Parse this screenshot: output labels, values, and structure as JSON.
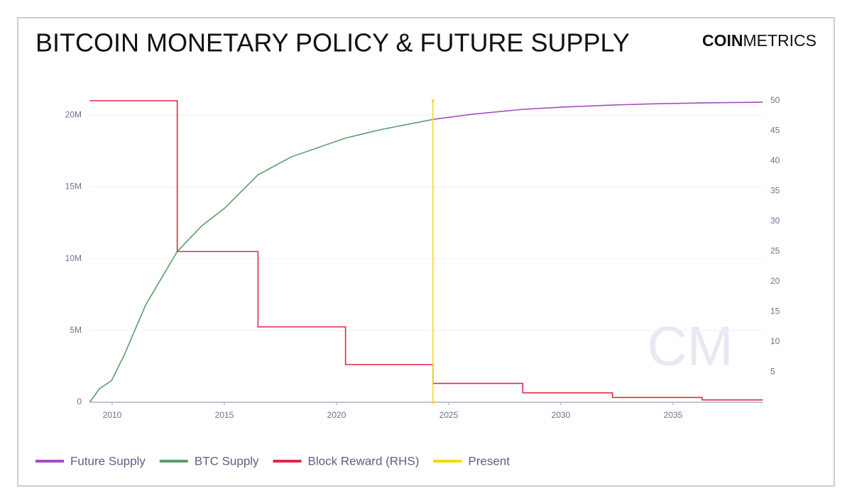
{
  "chart_data": {
    "type": "line",
    "title": "BITCOIN MONETARY POLICY & FUTURE SUPPLY",
    "brand": {
      "bold": "COIN",
      "light": "METRICS"
    },
    "watermark": "CM",
    "xlim": [
      2009,
      2039
    ],
    "xticks": [
      2010,
      2015,
      2020,
      2025,
      2030,
      2035
    ],
    "ylim": [
      0,
      21000000
    ],
    "yticks": [
      0,
      {
        "value": 5000000,
        "label": "5M"
      },
      {
        "value": 10000000,
        "label": "10M"
      },
      {
        "value": 15000000,
        "label": "15M"
      },
      {
        "value": 20000000,
        "label": "20M"
      }
    ],
    "y2lim": [
      0,
      50
    ],
    "y2ticks": [
      5,
      10,
      15,
      20,
      25,
      30,
      35,
      40,
      45,
      50
    ],
    "grid": true,
    "legend": "bottom-left",
    "series": [
      {
        "name": "Future Supply",
        "color": "#a64bc4",
        "x": [
          2024.3,
          2026,
          2028.3,
          2030,
          2032.3,
          2034,
          2036.3,
          2039
        ],
        "values": [
          19700000,
          20050000,
          20400000,
          20550000,
          20700000,
          20780000,
          20850000,
          20900000
        ]
      },
      {
        "name": "BTC Supply",
        "color": "#5a9e6a",
        "x": [
          2009,
          2009.43,
          2009.97,
          2010.54,
          2011.5,
          2012.9,
          2014,
          2015,
          2016.5,
          2018,
          2020.4,
          2022,
          2024.3
        ],
        "values": [
          0,
          940000,
          1500000,
          3300000,
          6800000,
          10500000,
          12300000,
          13500000,
          15840000,
          17100000,
          18400000,
          19000000,
          19700000
        ]
      },
      {
        "name": "Block Reward (RHS)",
        "color": "#e0284a",
        "axis": "y2",
        "x": [
          2009,
          2012.9,
          2012.9,
          2016.5,
          2016.5,
          2020.4,
          2020.4,
          2024.3,
          2024.3,
          2028.3,
          2028.3,
          2032.3,
          2032.3,
          2036.3,
          2036.3,
          2039
        ],
        "values": [
          50,
          50,
          25,
          25,
          12.5,
          12.5,
          6.25,
          6.25,
          3.125,
          3.125,
          1.5625,
          1.5625,
          0.78125,
          0.78125,
          0.390625,
          0.390625
        ]
      },
      {
        "name": "Present",
        "color": "#f5d90a",
        "axis": "y2",
        "x": [
          2024.3,
          2024.3
        ],
        "values": [
          0,
          50
        ]
      }
    ]
  }
}
